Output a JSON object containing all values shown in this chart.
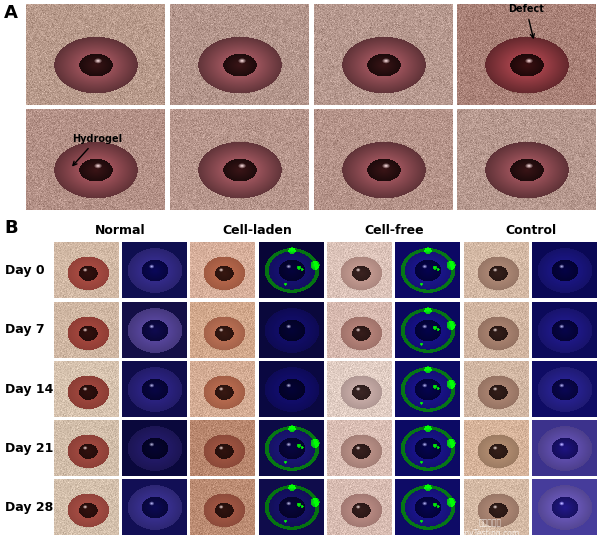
{
  "fig_width": 6.01,
  "fig_height": 5.39,
  "dpi": 100,
  "panel_A_label": "A",
  "panel_B_label": "B",
  "row_labels": [
    "Day 0",
    "Day 7",
    "Day 14",
    "Day 21",
    "Day 28"
  ],
  "col_group_labels": [
    "Normal",
    "Cell-laden",
    "Cell-free",
    "Control"
  ],
  "defect_text": "Defect",
  "hydrogel_text": "Hydrogel",
  "watermark": "嘉峪检测网\nAnyTesting.com",
  "bg_color": "#ffffff",
  "label_fontsize": 13,
  "header_fontsize": 9,
  "row_label_fontsize": 9,
  "annot_fontsize": 7,
  "panelA_bg_colors": [
    [
      "#b06858",
      "#c07868",
      "#b87068",
      "#c07878"
    ],
    [
      "#b06858",
      "#c07868",
      "#b87068",
      "#c07878"
    ]
  ],
  "panelA_eye_colors": [
    [
      "#c86878",
      "#c86878",
      "#c86878",
      "#c86878"
    ],
    [
      "#c86878",
      "#c86878",
      "#c86878",
      "#c86878"
    ]
  ]
}
